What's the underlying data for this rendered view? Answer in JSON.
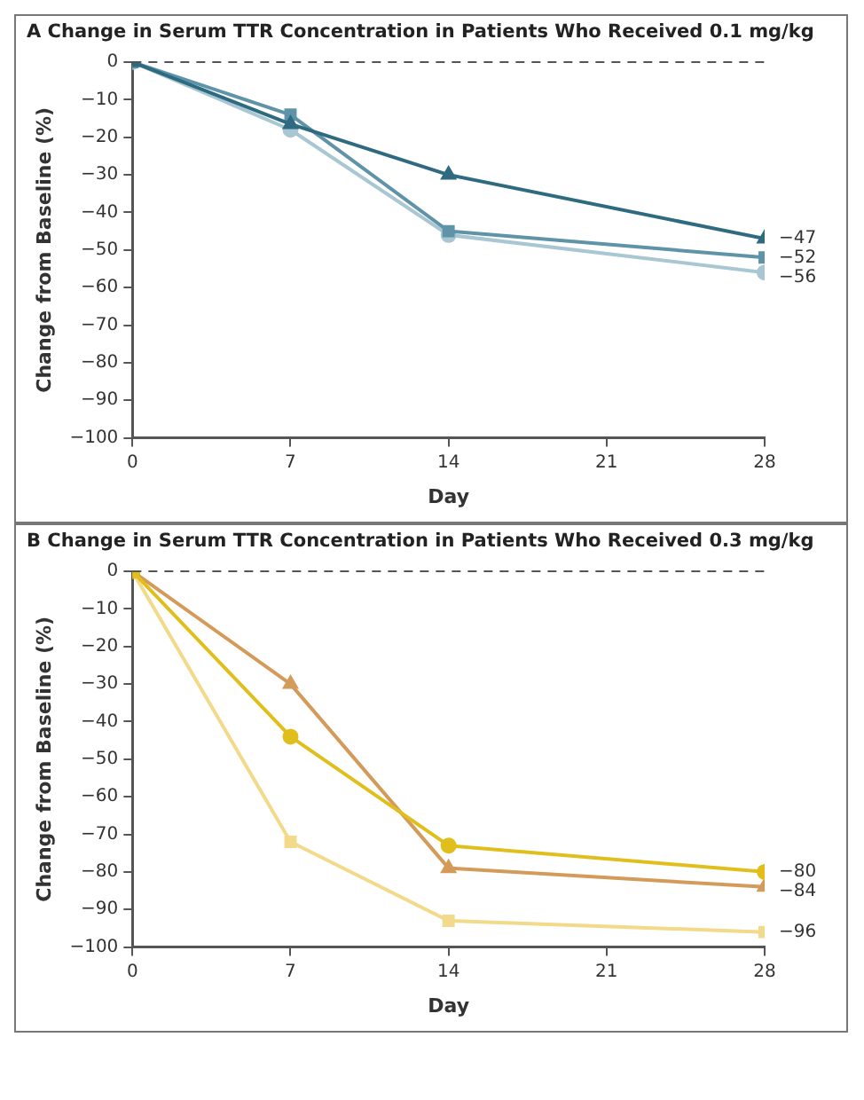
{
  "chart_data": [
    {
      "type": "line",
      "title": "A  Change in Serum TTR Concentration in Patients Who Received 0.1 mg/kg",
      "xlabel": "Day",
      "ylabel": "Change from Baseline (%)",
      "xlim": [
        0,
        28
      ],
      "xticks": [
        0,
        7,
        14,
        21,
        28
      ],
      "ylim": [
        -100,
        0
      ],
      "yticks": [
        0,
        -10,
        -20,
        -30,
        -40,
        -50,
        -60,
        -70,
        -80,
        -90,
        -100
      ],
      "grid": false,
      "legend": false,
      "ref_lines": [
        {
          "axis": "y",
          "value": 0,
          "color": "#555555",
          "line_style": "dashed"
        }
      ],
      "series": [
        {
          "x": [
            0,
            7,
            14,
            28
          ],
          "values": [
            0,
            -16.5,
            -30,
            -47
          ],
          "color": "#2e6b80",
          "marker": "triangle",
          "value_labels": [
            null,
            null,
            null,
            "−47"
          ]
        },
        {
          "x": [
            0,
            7,
            14,
            28
          ],
          "values": [
            0,
            -14,
            -45,
            -52
          ],
          "color": "#5e93a8",
          "marker": "square",
          "value_labels": [
            null,
            null,
            null,
            "−52"
          ]
        },
        {
          "x": [
            0,
            7,
            14,
            28
          ],
          "values": [
            0,
            -18,
            -46,
            -56
          ],
          "color": "#a9c7d3",
          "marker": "circle",
          "value_labels": [
            null,
            null,
            null,
            "−56"
          ]
        }
      ]
    },
    {
      "type": "line",
      "title": "B  Change in Serum TTR Concentration in Patients Who Received 0.3 mg/kg",
      "xlabel": "Day",
      "ylabel": "Change from Baseline (%)",
      "xlim": [
        0,
        28
      ],
      "xticks": [
        0,
        7,
        14,
        21,
        28
      ],
      "ylim": [
        -100,
        0
      ],
      "yticks": [
        0,
        -10,
        -20,
        -30,
        -40,
        -50,
        -60,
        -70,
        -80,
        -90,
        -100
      ],
      "grid": false,
      "legend": false,
      "ref_lines": [
        {
          "axis": "y",
          "value": 0,
          "color": "#555555",
          "line_style": "dashed"
        }
      ],
      "series": [
        {
          "x": [
            0,
            7,
            14,
            28
          ],
          "values": [
            0,
            -44,
            -73,
            -80
          ],
          "color": "#e0bf1c",
          "marker": "circle",
          "value_labels": [
            null,
            null,
            null,
            "−80"
          ]
        },
        {
          "x": [
            0,
            7,
            14,
            28
          ],
          "values": [
            0,
            -30,
            -79,
            -84
          ],
          "color": "#d49a5a",
          "marker": "triangle",
          "value_labels": [
            null,
            null,
            null,
            "−84"
          ]
        },
        {
          "x": [
            0,
            7,
            14,
            28
          ],
          "values": [
            0,
            -72,
            -93,
            -96
          ],
          "color": "#f3d98a",
          "marker": "square",
          "value_labels": [
            null,
            null,
            null,
            "−96"
          ]
        }
      ]
    }
  ]
}
